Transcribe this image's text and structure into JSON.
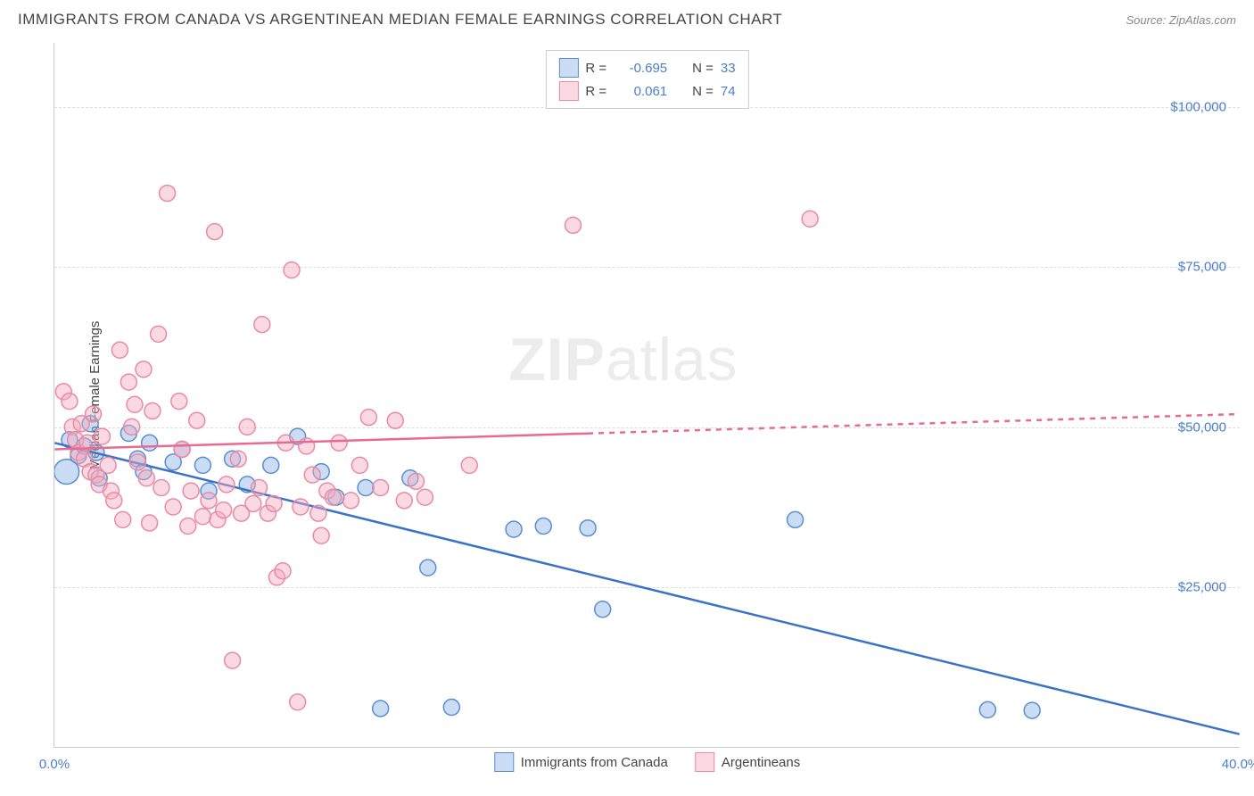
{
  "header": {
    "title": "IMMIGRANTS FROM CANADA VS ARGENTINEAN MEDIAN FEMALE EARNINGS CORRELATION CHART",
    "source_prefix": "Source: ",
    "source_name": "ZipAtlas.com"
  },
  "chart": {
    "type": "scatter",
    "ylabel": "Median Female Earnings",
    "watermark_bold": "ZIP",
    "watermark_rest": "atlas",
    "xlim": [
      0,
      40
    ],
    "ylim": [
      0,
      110000
    ],
    "xticks": [
      {
        "value": 0,
        "label": "0.0%"
      },
      {
        "value": 40,
        "label": "40.0%"
      }
    ],
    "yticks": [
      {
        "value": 25000,
        "label": "$25,000"
      },
      {
        "value": 50000,
        "label": "$50,000"
      },
      {
        "value": 75000,
        "label": "$75,000"
      },
      {
        "value": 100000,
        "label": "$100,000"
      }
    ],
    "grid_color": "#dddddd",
    "axis_color": "#cccccc",
    "tick_label_color": "#4a7ec9",
    "background_color": "#ffffff",
    "marker_radius": 9,
    "marker_stroke_width": 1.5,
    "trend_line_width": 2.5,
    "series": [
      {
        "name": "Immigrants from Canada",
        "fill_color": "rgba(138,180,230,0.45)",
        "stroke_color": "#5a8ed0",
        "trend_color": "#3a72c8",
        "R_label": "R =",
        "R_value": "-0.695",
        "N_label": "N =",
        "N_value": "33",
        "trend": {
          "x1": 0,
          "y1": 47500,
          "x2": 40,
          "y2": 2000,
          "solid_until_x": 40
        },
        "points": [
          [
            0.4,
            43000,
            14
          ],
          [
            0.5,
            48000,
            9
          ],
          [
            0.8,
            45500,
            9
          ],
          [
            1.0,
            47000,
            9
          ],
          [
            1.2,
            50500,
            9
          ],
          [
            1.4,
            46000,
            9
          ],
          [
            1.5,
            42000,
            9
          ],
          [
            2.5,
            49000,
            9
          ],
          [
            2.8,
            45000,
            9
          ],
          [
            3.0,
            43000,
            9
          ],
          [
            3.2,
            47500,
            9
          ],
          [
            4.0,
            44500,
            9
          ],
          [
            4.3,
            46500,
            9
          ],
          [
            5.0,
            44000,
            9
          ],
          [
            5.2,
            40000,
            9
          ],
          [
            6.0,
            45000,
            9
          ],
          [
            6.5,
            41000,
            9
          ],
          [
            7.3,
            44000,
            9
          ],
          [
            8.2,
            48500,
            9
          ],
          [
            9.0,
            43000,
            9
          ],
          [
            9.5,
            39000,
            9
          ],
          [
            10.5,
            40500,
            9
          ],
          [
            11.0,
            6000,
            9
          ],
          [
            12.0,
            42000,
            9
          ],
          [
            12.6,
            28000,
            9
          ],
          [
            13.4,
            6200,
            9
          ],
          [
            15.5,
            34000,
            9
          ],
          [
            16.5,
            34500,
            9
          ],
          [
            18.5,
            21500,
            9
          ],
          [
            18.0,
            34200,
            9
          ],
          [
            25.0,
            35500,
            9
          ],
          [
            31.5,
            5800,
            9
          ],
          [
            33.0,
            5700,
            9
          ]
        ]
      },
      {
        "name": "Argentineans",
        "fill_color": "rgba(245,170,190,0.45)",
        "stroke_color": "#e88aa5",
        "trend_color": "#e86a8f",
        "R_label": "R =",
        "R_value": "0.061",
        "N_label": "N =",
        "N_value": "74",
        "trend": {
          "x1": 0,
          "y1": 46500,
          "x2": 40,
          "y2": 52000,
          "solid_until_x": 18
        },
        "points": [
          [
            0.3,
            55500,
            9
          ],
          [
            0.5,
            54000,
            9
          ],
          [
            0.6,
            50000,
            9
          ],
          [
            0.7,
            48000,
            9
          ],
          [
            0.8,
            46000,
            9
          ],
          [
            0.9,
            50500,
            9
          ],
          [
            1.0,
            45000,
            9
          ],
          [
            1.1,
            47500,
            9
          ],
          [
            1.2,
            43000,
            9
          ],
          [
            1.3,
            52000,
            9
          ],
          [
            1.4,
            42500,
            9
          ],
          [
            1.5,
            41000,
            9
          ],
          [
            1.6,
            48500,
            9
          ],
          [
            1.8,
            44000,
            9
          ],
          [
            1.9,
            40000,
            9
          ],
          [
            2.0,
            38500,
            9
          ],
          [
            2.2,
            62000,
            9
          ],
          [
            2.3,
            35500,
            9
          ],
          [
            2.5,
            57000,
            9
          ],
          [
            2.6,
            50000,
            9
          ],
          [
            2.7,
            53500,
            9
          ],
          [
            2.8,
            44500,
            9
          ],
          [
            3.0,
            59000,
            9
          ],
          [
            3.1,
            42000,
            9
          ],
          [
            3.2,
            35000,
            9
          ],
          [
            3.3,
            52500,
            9
          ],
          [
            3.5,
            64500,
            9
          ],
          [
            3.6,
            40500,
            9
          ],
          [
            3.8,
            86500,
            9
          ],
          [
            4.0,
            37500,
            9
          ],
          [
            4.2,
            54000,
            9
          ],
          [
            4.3,
            46500,
            9
          ],
          [
            4.5,
            34500,
            9
          ],
          [
            4.6,
            40000,
            9
          ],
          [
            4.8,
            51000,
            9
          ],
          [
            5.0,
            36000,
            9
          ],
          [
            5.2,
            38500,
            9
          ],
          [
            5.4,
            80500,
            9
          ],
          [
            5.5,
            35500,
            9
          ],
          [
            5.7,
            37000,
            9
          ],
          [
            5.8,
            41000,
            9
          ],
          [
            6.0,
            13500,
            9
          ],
          [
            6.2,
            45000,
            9
          ],
          [
            6.3,
            36500,
            9
          ],
          [
            6.5,
            50000,
            9
          ],
          [
            6.7,
            38000,
            9
          ],
          [
            6.9,
            40500,
            9
          ],
          [
            7.0,
            66000,
            9
          ],
          [
            7.2,
            36500,
            9
          ],
          [
            7.4,
            38000,
            9
          ],
          [
            7.5,
            26500,
            9
          ],
          [
            7.7,
            27500,
            9
          ],
          [
            7.8,
            47500,
            9
          ],
          [
            8.0,
            74500,
            9
          ],
          [
            8.2,
            7000,
            9
          ],
          [
            8.3,
            37500,
            9
          ],
          [
            8.5,
            47000,
            9
          ],
          [
            8.7,
            42500,
            9
          ],
          [
            8.9,
            36500,
            9
          ],
          [
            9.0,
            33000,
            9
          ],
          [
            9.2,
            40000,
            9
          ],
          [
            9.4,
            39000,
            9
          ],
          [
            9.6,
            47500,
            9
          ],
          [
            10.0,
            38500,
            9
          ],
          [
            10.3,
            44000,
            9
          ],
          [
            10.6,
            51500,
            9
          ],
          [
            11.0,
            40500,
            9
          ],
          [
            11.5,
            51000,
            9
          ],
          [
            11.8,
            38500,
            9
          ],
          [
            12.2,
            41500,
            9
          ],
          [
            12.5,
            39000,
            9
          ],
          [
            14.0,
            44000,
            9
          ],
          [
            17.5,
            81500,
            9
          ],
          [
            25.5,
            82500,
            9
          ]
        ]
      }
    ]
  }
}
